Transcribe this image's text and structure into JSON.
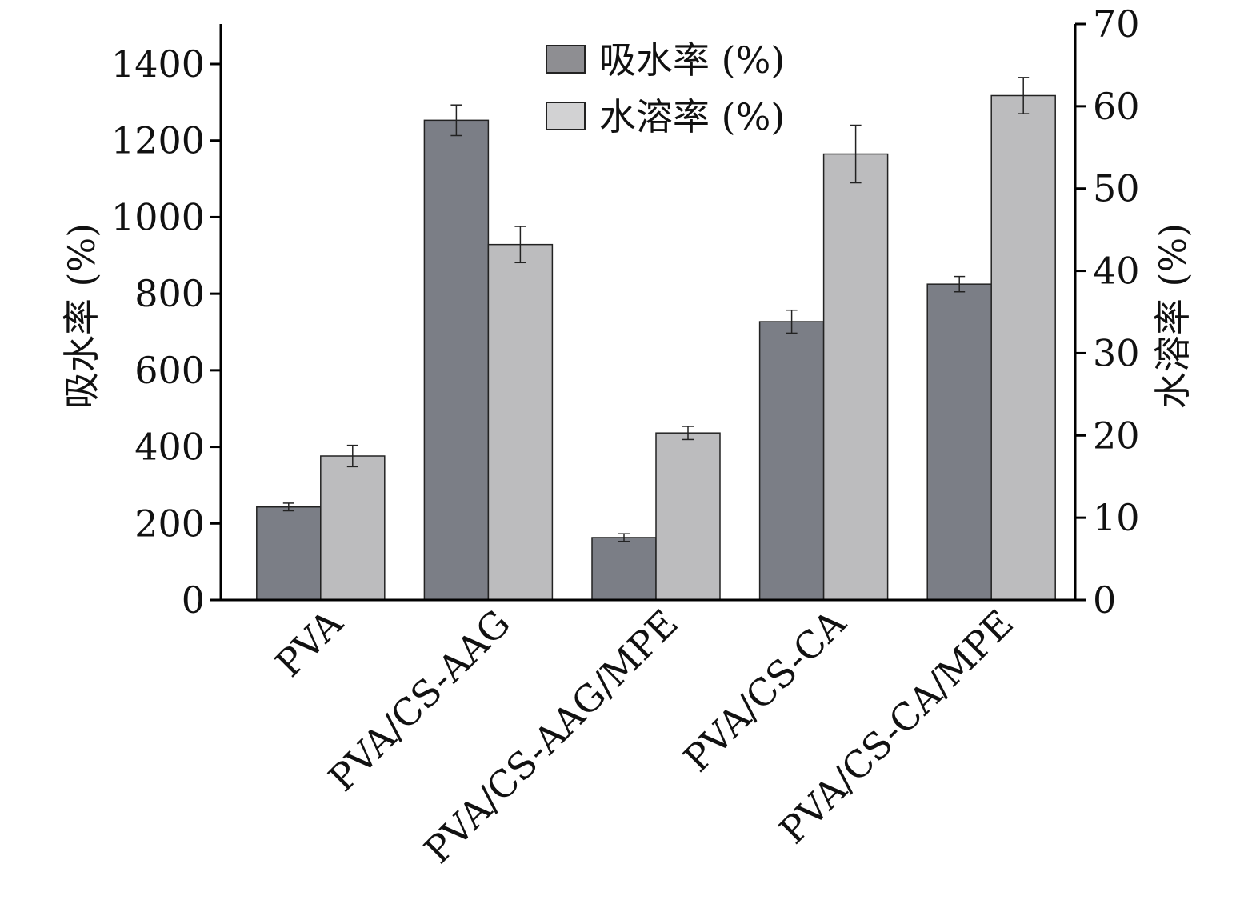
{
  "chart_data": {
    "type": "bar",
    "categories": [
      "PVA",
      "PVA/CS-AAG",
      "PVA/CS-AAG/MPE",
      "PVA/CS-CA",
      "PVA/CS-CA/MPE"
    ],
    "series": [
      {
        "name": "吸水率 (%)",
        "axis": "left",
        "color": "#7b7e86",
        "values": [
          243,
          1253,
          163,
          727,
          825
        ],
        "errors": [
          10,
          40,
          10,
          30,
          20
        ]
      },
      {
        "name": "水溶率 (%)",
        "axis": "right",
        "color": "#bcbcbe",
        "values": [
          17.5,
          43.2,
          20.3,
          54.2,
          61.3
        ],
        "errors": [
          1.3,
          2.2,
          0.8,
          3.5,
          2.2
        ]
      }
    ],
    "ylabel": "吸水率 (%)",
    "y2label": "水溶率 (%)",
    "ylim": [
      0,
      1500
    ],
    "y2lim": [
      0,
      70
    ],
    "yticks": [
      0,
      200,
      400,
      600,
      800,
      1000,
      1200,
      1400
    ],
    "y2ticks": [
      0,
      10,
      20,
      30,
      40,
      50,
      60,
      70
    ],
    "grid": false,
    "legend_position": "top-center"
  }
}
